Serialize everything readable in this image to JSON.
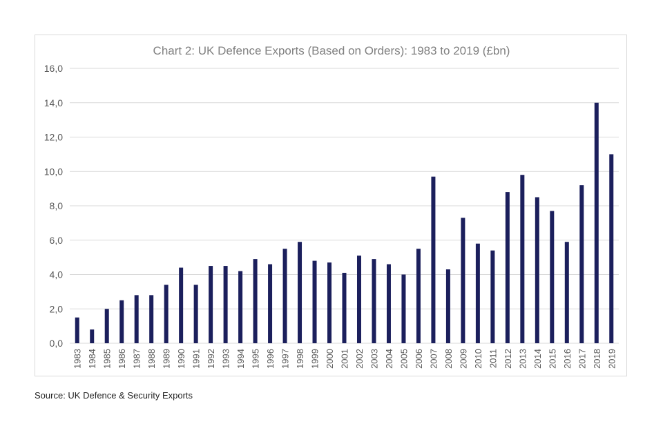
{
  "source": "Source: UK Defence & Security Exports",
  "colors": {
    "bar": "#1b1f5c",
    "grid": "#d9d9d9",
    "text": "#595959",
    "title": "#808080"
  },
  "chart_data": {
    "type": "bar",
    "title": "Chart 2: UK Defence Exports (Based on Orders): 1983 to 2019 (£bn)",
    "xlabel": "",
    "ylabel": "",
    "ylim": [
      0,
      16
    ],
    "yticks": [
      "0,0",
      "2,0",
      "4,0",
      "6,0",
      "8,0",
      "10,0",
      "12,0",
      "14,0",
      "16,0"
    ],
    "grid": true,
    "categories": [
      "1983",
      "1984",
      "1985",
      "1986",
      "1987",
      "1988",
      "1989",
      "1990",
      "1991",
      "1992",
      "1993",
      "1994",
      "1995",
      "1996",
      "1997",
      "1998",
      "1999",
      "2000",
      "2001",
      "2002",
      "2003",
      "2004",
      "2005",
      "2006",
      "2007",
      "2008",
      "2009",
      "2010",
      "2011",
      "2012",
      "2013",
      "2014",
      "2015",
      "2016",
      "2017",
      "2018",
      "2019"
    ],
    "values": [
      1.5,
      0.8,
      2.0,
      2.5,
      2.8,
      2.8,
      3.4,
      4.4,
      3.4,
      4.5,
      4.5,
      4.2,
      4.9,
      4.6,
      5.5,
      5.9,
      4.8,
      4.7,
      4.1,
      5.1,
      4.9,
      4.6,
      4.0,
      5.5,
      9.7,
      4.3,
      7.3,
      5.8,
      5.4,
      8.8,
      9.8,
      8.5,
      7.7,
      5.9,
      9.2,
      14.0,
      11.0
    ]
  }
}
